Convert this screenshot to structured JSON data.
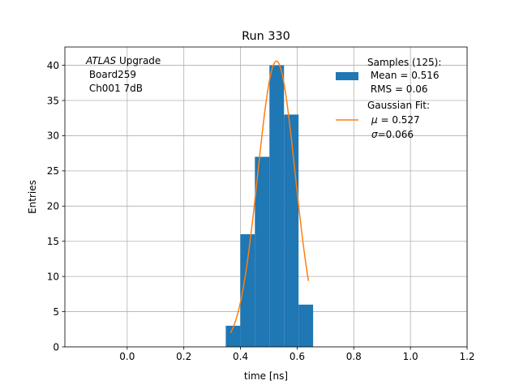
{
  "chart_data": {
    "type": "bar",
    "title": "Run 330",
    "xlabel": "time [ns]",
    "ylabel": "Entries",
    "xlim": [
      -0.22,
      1.2
    ],
    "ylim": [
      0,
      42.6
    ],
    "grid": true,
    "x_ticks": [
      "0.0",
      "0.2",
      "0.4",
      "0.6",
      "0.8",
      "1.0",
      "1.2"
    ],
    "x_tick_values": [
      0.0,
      0.2,
      0.4,
      0.6,
      0.8,
      1.0,
      1.2
    ],
    "y_ticks": [
      "0",
      "5",
      "10",
      "15",
      "20",
      "25",
      "30",
      "35",
      "40"
    ],
    "y_tick_values": [
      0,
      5,
      10,
      15,
      20,
      25,
      30,
      35,
      40
    ],
    "histogram": {
      "color": "#1f77b4",
      "bin_edges": [
        0.348,
        0.3994,
        0.4508,
        0.5022,
        0.5536,
        0.605,
        0.6564
      ],
      "counts": [
        3,
        16,
        27,
        40,
        33,
        6
      ]
    },
    "gaussian_fit": {
      "color": "#ff7f0e",
      "mu": 0.527,
      "sigma": 0.066,
      "amplitude": 40.6,
      "x_range": [
        0.365,
        0.64
      ]
    },
    "annotation": {
      "line1_italic": "ATLAS",
      "line1_rest": " Upgrade",
      "line2": " Board259",
      "line3": " Ch001 7dB",
      "position": "top-left"
    },
    "legend": {
      "position": "top-right",
      "samples_title": "Samples (125):",
      "samples_mean": " Mean = 0.516",
      "samples_rms": " RMS = 0.06",
      "fit_title": "Gaussian Fit:",
      "fit_mu_symbol": "μ",
      "fit_mu_rest": " = 0.527",
      "fit_sigma_symbol": "σ",
      "fit_sigma_rest": "=0.066"
    }
  }
}
